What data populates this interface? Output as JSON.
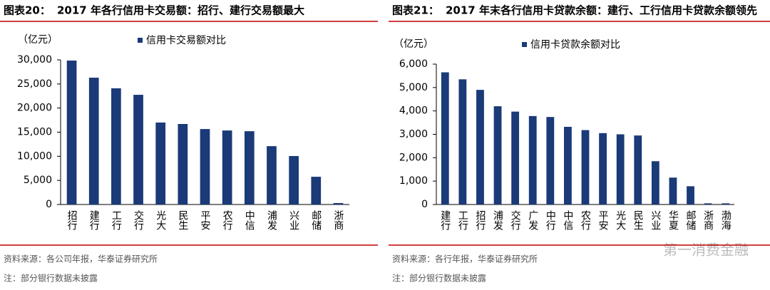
{
  "chart_data": [
    {
      "type": "bar",
      "figure_label": "图表20：",
      "title": "2017 年各行信用卡交易额：招行、建行交易额最大",
      "unit": "（亿元）",
      "categories": [
        "招行",
        "建行",
        "工行",
        "交行",
        "光大",
        "民生",
        "平安",
        "农行",
        "中信",
        "浦发",
        "兴业",
        "邮储",
        "浙商"
      ],
      "series": [
        {
          "name": "信用卡交易额对比",
          "color": "#1a3a78",
          "values": [
            29850,
            26300,
            24100,
            22750,
            17000,
            16700,
            15650,
            15350,
            15200,
            12100,
            10050,
            5750,
            300
          ]
        }
      ],
      "ylim": [
        0,
        30000
      ],
      "yticks": [
        0,
        {
          "value": 5000,
          "label": "5,000"
        },
        {
          "value": 10000,
          "label": "10,000"
        },
        {
          "value": 15000,
          "label": "15,000"
        },
        {
          "value": 20000,
          "label": "20,000"
        },
        {
          "value": 25000,
          "label": "25,000"
        },
        {
          "value": 30000,
          "label": "30,000"
        }
      ],
      "source": "资料来源：各公司年报，华泰证券研究所",
      "note": "注：部分银行数据未披露"
    },
    {
      "type": "bar",
      "figure_label": "图表21：",
      "title": "2017 年末各行信用卡贷款余额：建行、工行信用卡贷款余额领先",
      "unit": "（亿元）",
      "categories": [
        "建行",
        "工行",
        "招行",
        "浦发",
        "交行",
        "广发",
        "中行",
        "中信",
        "农行",
        "平安",
        "光大",
        "民生",
        "兴业",
        "华夏",
        "邮储",
        "浙商",
        "渤海"
      ],
      "series": [
        {
          "name": "信用卡贷款余额对比",
          "color": "#1a3a78",
          "values": [
            5650,
            5350,
            4900,
            4200,
            3970,
            3780,
            3740,
            3320,
            3180,
            3050,
            3000,
            2950,
            1850,
            1150,
            780,
            50,
            50
          ]
        }
      ],
      "ylim": [
        0,
        6000
      ],
      "yticks": [
        0,
        {
          "value": 1000,
          "label": "1,000"
        },
        {
          "value": 2000,
          "label": "2,000"
        },
        {
          "value": 3000,
          "label": "3,000"
        },
        {
          "value": 4000,
          "label": "4,000"
        },
        {
          "value": 5000,
          "label": "5,000"
        },
        {
          "value": 6000,
          "label": "6,000"
        }
      ],
      "source": "资料来源：各行年报，华泰证券研究所",
      "note": "注：部分银行数据未披露"
    }
  ],
  "watermark": "第一消费金融"
}
